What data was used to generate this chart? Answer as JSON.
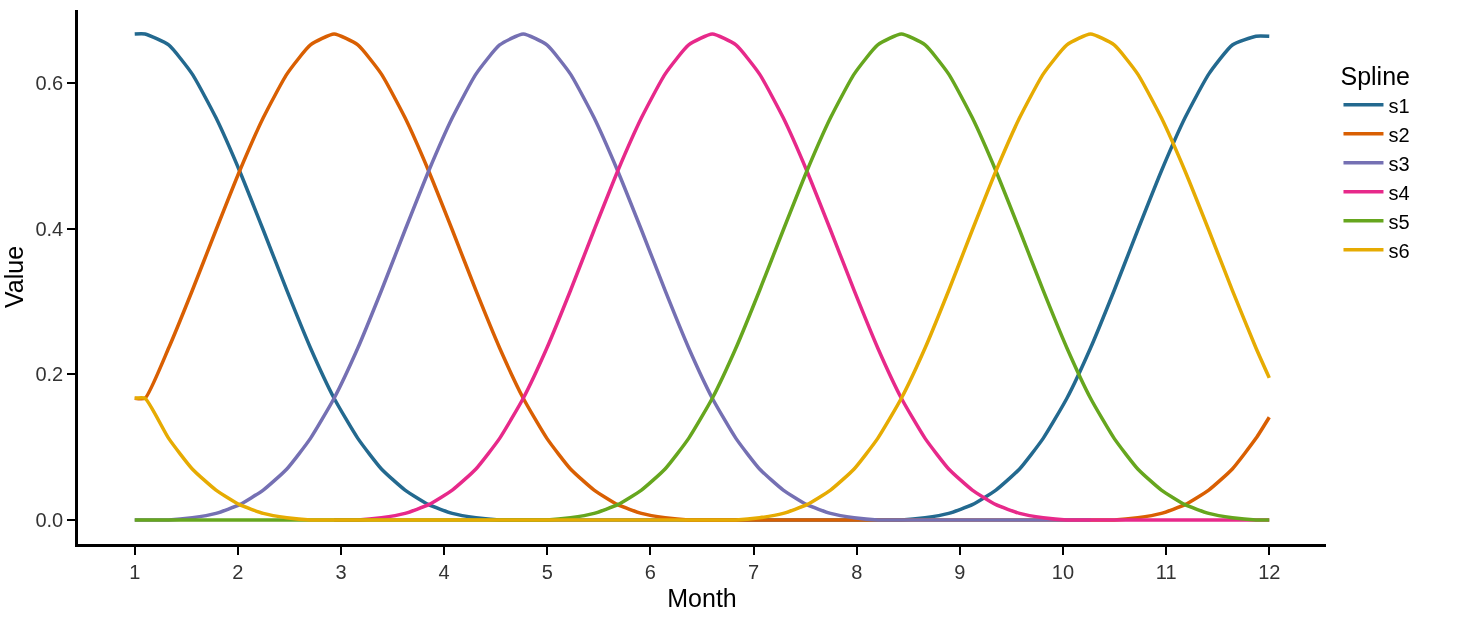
{
  "chart_data": {
    "type": "line",
    "xlabel": "Month",
    "ylabel": "Value",
    "legend_title": "Spline",
    "legend": "right",
    "grid": false,
    "marker": "none",
    "line_style": "solid",
    "x": [
      1.0,
      1.1,
      1.329,
      1.558,
      1.788,
      2.017,
      2.246,
      2.475,
      2.704,
      2.933,
      3.163,
      3.392,
      3.621,
      3.85,
      4.079,
      4.308,
      4.538,
      4.767,
      4.996,
      5.225,
      5.454,
      5.683,
      5.913,
      6.142,
      6.371,
      6.6,
      6.829,
      7.058,
      7.288,
      7.517,
      7.746,
      7.975,
      8.204,
      8.433,
      8.663,
      8.892,
      9.121,
      9.35,
      9.579,
      9.808,
      10.038,
      10.267,
      10.496,
      10.725,
      10.954,
      11.183,
      11.413,
      11.642,
      11.871,
      12.0
    ],
    "xlim": [
      0.45,
      12.55
    ],
    "xticks": [
      1,
      2,
      3,
      4,
      5,
      6,
      7,
      8,
      9,
      10,
      11,
      12
    ],
    "ylim": [
      -0.033,
      0.7
    ],
    "yticks": [
      {
        "value": 0,
        "label": "0.0"
      },
      0.2,
      0.4,
      0.6
    ],
    "series": [
      {
        "name": "s1",
        "color": "#23698f",
        "values": [
          0.667,
          0.667,
          0.652,
          0.612,
          0.552,
          0.479,
          0.398,
          0.315,
          0.236,
          0.167,
          0.112,
          0.07,
          0.041,
          0.021,
          0.009,
          0.003,
          0,
          0,
          0,
          0,
          0,
          0,
          0,
          0,
          0,
          0,
          0,
          0,
          0,
          0,
          0,
          0,
          0,
          0,
          0.003,
          0.009,
          0.021,
          0.041,
          0.07,
          0.112,
          0.167,
          0.236,
          0.315,
          0.398,
          0.479,
          0.552,
          0.612,
          0.652,
          0.664,
          0.664
        ]
      },
      {
        "name": "s2",
        "color": "#d95f02",
        "values": [
          0.167,
          0.167,
          0.236,
          0.315,
          0.398,
          0.479,
          0.552,
          0.612,
          0.652,
          0.667,
          0.652,
          0.612,
          0.552,
          0.479,
          0.398,
          0.315,
          0.236,
          0.167,
          0.112,
          0.07,
          0.041,
          0.021,
          0.009,
          0.003,
          0,
          0,
          0,
          0,
          0,
          0,
          0,
          0,
          0,
          0,
          0,
          0,
          0,
          0,
          0,
          0,
          0,
          0,
          0,
          0.003,
          0.009,
          0.021,
          0.041,
          0.07,
          0.112,
          0.141
        ]
      },
      {
        "name": "s3",
        "color": "#7570b3",
        "values": [
          0,
          0,
          0,
          0.003,
          0.009,
          0.021,
          0.041,
          0.07,
          0.112,
          0.167,
          0.236,
          0.315,
          0.398,
          0.479,
          0.552,
          0.612,
          0.652,
          0.667,
          0.652,
          0.612,
          0.552,
          0.479,
          0.398,
          0.315,
          0.236,
          0.167,
          0.112,
          0.07,
          0.041,
          0.021,
          0.009,
          0.003,
          0,
          0,
          0,
          0,
          0,
          0,
          0,
          0,
          0,
          0,
          null,
          null,
          null,
          null,
          null,
          null,
          null,
          null
        ]
      },
      {
        "name": "s4",
        "color": "#e7298a",
        "values": [
          null,
          null,
          null,
          null,
          null,
          null,
          null,
          null,
          null,
          0,
          0,
          0.003,
          0.009,
          0.021,
          0.041,
          0.07,
          0.112,
          0.167,
          0.236,
          0.315,
          0.398,
          0.479,
          0.552,
          0.612,
          0.652,
          0.667,
          0.652,
          0.612,
          0.552,
          0.479,
          0.398,
          0.315,
          0.236,
          0.167,
          0.112,
          0.07,
          0.041,
          0.021,
          0.009,
          0.003,
          0,
          0,
          0,
          0,
          0,
          0,
          0,
          0,
          0,
          0
        ]
      },
      {
        "name": "s5",
        "color": "#66a61e",
        "values": [
          0,
          0,
          0,
          0,
          0,
          0,
          0,
          0,
          0,
          0,
          0,
          0,
          0,
          0,
          0,
          0,
          0,
          0,
          0,
          0.003,
          0.009,
          0.021,
          0.041,
          0.07,
          0.112,
          0.167,
          0.236,
          0.315,
          0.398,
          0.479,
          0.552,
          0.612,
          0.652,
          0.667,
          0.652,
          0.612,
          0.552,
          0.479,
          0.398,
          0.315,
          0.236,
          0.167,
          0.112,
          0.07,
          0.041,
          0.021,
          0.009,
          0.003,
          0,
          0
        ]
      },
      {
        "name": "s6",
        "color": "#e6ab02",
        "values": [
          0.167,
          0.167,
          0.112,
          0.07,
          0.041,
          0.021,
          0.009,
          0.003,
          0,
          0,
          0,
          0,
          0,
          0,
          0,
          0,
          0,
          0,
          0,
          0,
          0,
          0,
          0,
          0,
          0,
          0,
          0,
          0.003,
          0.009,
          0.021,
          0.041,
          0.07,
          0.112,
          0.167,
          0.236,
          0.315,
          0.398,
          0.479,
          0.552,
          0.612,
          0.652,
          0.667,
          0.652,
          0.612,
          0.552,
          0.479,
          0.398,
          0.315,
          0.236,
          0.195
        ]
      }
    ]
  }
}
